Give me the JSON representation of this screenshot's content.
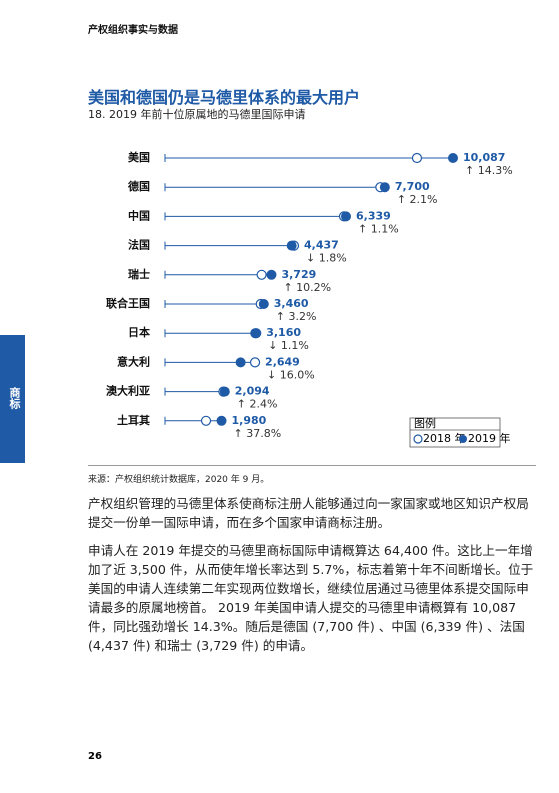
{
  "header": {
    "title": "产权组织事实与数据"
  },
  "side_tab": "商标",
  "chart_data": {
    "type": "dot",
    "title": "美国和德国仍是马德里体系的最大用户",
    "subtitle": "18. 2019 年前十位原属地的马德里国际申请",
    "categories": [
      "美国",
      "德国",
      "中国",
      "法国",
      "瑞士",
      "联合王国",
      "日本",
      "意大利",
      "澳大利亚",
      "土耳其"
    ],
    "series": [
      {
        "name": "2018 年",
        "color": "#ffffff",
        "values": [
          8825,
          7542,
          6270,
          4518,
          3384,
          3353,
          3195,
          3154,
          2045,
          1437
        ]
      },
      {
        "name": "2019 年",
        "color": "#1f5aa6",
        "values": [
          10087,
          7700,
          6339,
          4437,
          3729,
          3460,
          3160,
          2649,
          2094,
          1980
        ],
        "value_labels": [
          "10,087",
          "7,700",
          "6,339",
          "4,437",
          "3,729",
          "3,460",
          "3,160",
          "2,649",
          "2,094",
          "1,980"
        ]
      }
    ],
    "growth_labels": [
      "↑ 14.3%",
      "↑ 2.1%",
      "↑ 1.1%",
      "↓ 1.8%",
      "↑ 10.2%",
      "↑ 3.2%",
      "↓ 1.1%",
      "↓ 16.0%",
      "↑ 2.4%",
      "↑ 37.8%"
    ],
    "legend_title": "图例",
    "legend_position": "lower right"
  },
  "source": "来源：产权组织统计数据库，2020 年 9 月。",
  "paragraphs": [
    "产权组织管理的马德里体系使商标注册人能够通过向一家国家或地区知识产权局提交一份单一国际申请，而在多个国家申请商标注册。",
    "申请人在 2019 年提交的马德里商标国际申请概算达 64,400 件。这比上一年增加了近 3,500 件，从而使年增长率达到 5.7%，标志着第十年不间断增长。位于美国的申请人连续第二年实现两位数增长，继续位居通过马德里体系提交国际申请最多的原属地榜首。 2019 年美国申请人提交的马德里申请概算有 10,087 件，同比强劲增长 14.3%。随后是德国 (7,700 件) 、中国 (6,339 件) 、法国 (4,437 件) 和瑞士 (3,729 件) 的申请。"
  ],
  "page_number": "26"
}
